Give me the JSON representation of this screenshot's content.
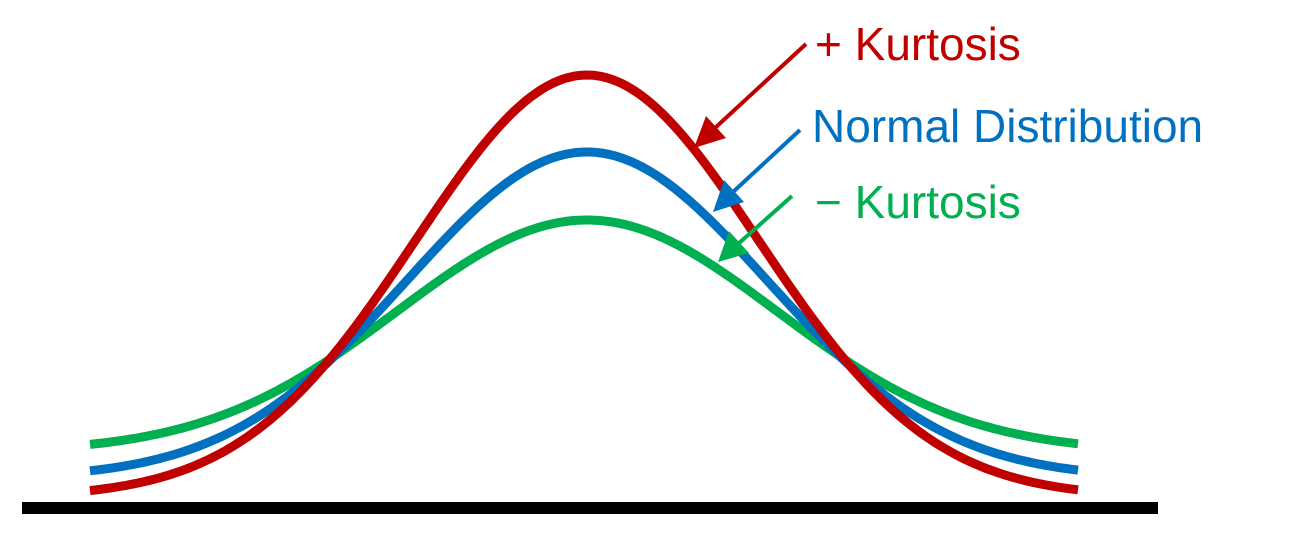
{
  "labels": {
    "positive": "+ Kurtosis",
    "normal": "Normal Distribution",
    "negative": "− Kurtosis"
  }
}
